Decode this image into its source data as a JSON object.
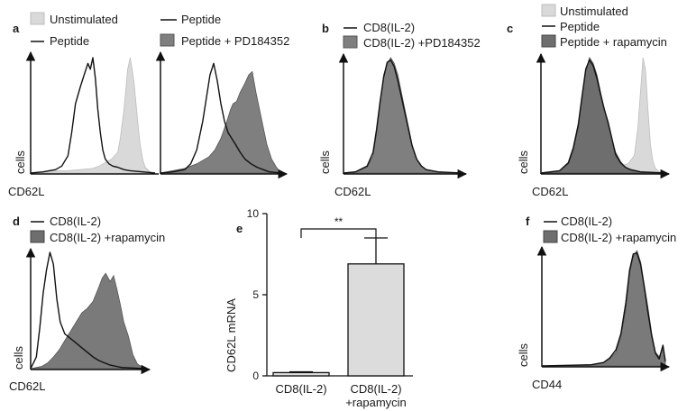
{
  "colors": {
    "unstimulated": "#d9d9d9",
    "peptide_line": "#111111",
    "pd184352": "#7f7f7f",
    "rapamycin": "#6e6e6e",
    "bar_fill": "#dcdcdc",
    "axis": "#111111"
  },
  "chart_data": [
    {
      "id": "a-left",
      "type": "area",
      "panel_label": "a",
      "xlabel": "CD62L",
      "ylabel": "cells",
      "xlim": [
        0,
        100
      ],
      "ylim": [
        0,
        1
      ],
      "legend": [
        {
          "name": "Unstimulated",
          "style": "fill",
          "color": "#d9d9d9"
        },
        {
          "name": "Peptide",
          "style": "line",
          "color": "#111111"
        }
      ],
      "series": [
        {
          "name": "Unstimulated",
          "style": "fill",
          "color": "#d9d9d9",
          "edge": "#bdbdbd",
          "opacity": 1,
          "x": [
            0,
            10,
            20,
            30,
            40,
            50,
            55,
            60,
            65,
            70,
            72,
            75,
            78,
            80,
            83,
            86,
            88,
            90,
            92,
            96,
            100
          ],
          "y": [
            0,
            0.01,
            0.02,
            0.02,
            0.03,
            0.04,
            0.06,
            0.09,
            0.12,
            0.18,
            0.3,
            0.55,
            0.9,
            1.0,
            0.8,
            0.45,
            0.25,
            0.12,
            0.05,
            0.01,
            0
          ]
        },
        {
          "name": "Peptide",
          "style": "line",
          "color": "#111111",
          "x": [
            0,
            10,
            20,
            25,
            30,
            33,
            36,
            40,
            43,
            46,
            48,
            50,
            52,
            54,
            56,
            58,
            60,
            63,
            66,
            70,
            75,
            80,
            90,
            100
          ],
          "y": [
            0,
            0.01,
            0.03,
            0.06,
            0.15,
            0.35,
            0.6,
            0.75,
            0.85,
            0.95,
            0.9,
            1.0,
            0.82,
            0.55,
            0.35,
            0.2,
            0.12,
            0.08,
            0.06,
            0.05,
            0.03,
            0.02,
            0.01,
            0
          ]
        }
      ]
    },
    {
      "id": "a-right",
      "type": "area",
      "panel_label": "",
      "xlabel": "",
      "ylabel": "",
      "xlim": [
        0,
        100
      ],
      "ylim": [
        0,
        1
      ],
      "legend": [
        {
          "name": "Peptide",
          "style": "line",
          "color": "#111111"
        },
        {
          "name": "Peptide + PD184352",
          "style": "fill",
          "color": "#7f7f7f"
        }
      ],
      "series": [
        {
          "name": "Peptide + PD184352",
          "style": "fill",
          "color": "#7f7f7f",
          "edge": "#555555",
          "opacity": 1,
          "x": [
            0,
            10,
            20,
            30,
            40,
            45,
            50,
            55,
            58,
            60,
            63,
            66,
            70,
            73,
            76,
            79,
            82,
            85,
            88,
            92,
            96,
            100
          ],
          "y": [
            0,
            0.02,
            0.04,
            0.08,
            0.14,
            0.2,
            0.3,
            0.45,
            0.55,
            0.6,
            0.62,
            0.7,
            0.78,
            0.85,
            0.88,
            0.7,
            0.55,
            0.4,
            0.25,
            0.12,
            0.05,
            0
          ]
        },
        {
          "name": "Peptide",
          "style": "line",
          "color": "#111111",
          "x": [
            0,
            10,
            20,
            25,
            30,
            35,
            38,
            41,
            44,
            47,
            50,
            53,
            56,
            59,
            62,
            66,
            70,
            75,
            80,
            85,
            90,
            100
          ],
          "y": [
            0,
            0.01,
            0.03,
            0.08,
            0.2,
            0.45,
            0.65,
            0.85,
            0.95,
            0.8,
            0.6,
            0.45,
            0.35,
            0.3,
            0.25,
            0.18,
            0.12,
            0.08,
            0.05,
            0.03,
            0.01,
            0
          ]
        }
      ]
    },
    {
      "id": "b",
      "type": "area",
      "panel_label": "b",
      "xlabel": "CD62L",
      "ylabel": "cells",
      "xlim": [
        0,
        100
      ],
      "ylim": [
        0,
        1
      ],
      "legend": [
        {
          "name": "CD8(IL-2)",
          "style": "line",
          "color": "#111111"
        },
        {
          "name": "CD8(IL-2) +PD184352",
          "style": "fill",
          "color": "#7f7f7f"
        }
      ],
      "series": [
        {
          "name": "CD8(IL-2) +PD184352",
          "style": "fill",
          "color": "#7f7f7f",
          "edge": "#555555",
          "opacity": 1,
          "x": [
            0,
            10,
            20,
            25,
            28,
            31,
            34,
            37,
            40,
            43,
            46,
            49,
            52,
            55,
            58,
            62,
            66,
            70,
            80,
            100
          ],
          "y": [
            0,
            0.01,
            0.05,
            0.15,
            0.35,
            0.6,
            0.85,
            0.95,
            1.0,
            0.95,
            0.85,
            0.7,
            0.55,
            0.4,
            0.25,
            0.12,
            0.06,
            0.03,
            0.01,
            0
          ]
        },
        {
          "name": "CD8(IL-2)",
          "style": "line",
          "color": "#111111",
          "x": [
            0,
            10,
            20,
            25,
            28,
            31,
            34,
            37,
            40,
            43,
            46,
            49,
            52,
            55,
            58,
            62,
            66,
            70,
            80,
            100
          ],
          "y": [
            0,
            0.01,
            0.06,
            0.18,
            0.38,
            0.62,
            0.83,
            0.96,
            0.98,
            0.92,
            0.8,
            0.66,
            0.52,
            0.38,
            0.24,
            0.12,
            0.06,
            0.03,
            0.01,
            0
          ]
        }
      ]
    },
    {
      "id": "c",
      "type": "area",
      "panel_label": "c",
      "xlabel": "CD62L",
      "ylabel": "cells",
      "xlim": [
        0,
        100
      ],
      "ylim": [
        0,
        1
      ],
      "legend": [
        {
          "name": "Unstimulated",
          "style": "fill",
          "color": "#d9d9d9"
        },
        {
          "name": "Peptide",
          "style": "line",
          "color": "#111111"
        },
        {
          "name": "Peptide + rapamycin",
          "style": "fill",
          "color": "#6e6e6e"
        }
      ],
      "series": [
        {
          "name": "Unstimulated",
          "style": "fill",
          "color": "#d9d9d9",
          "edge": "#bdbdbd",
          "opacity": 1,
          "x": [
            0,
            30,
            50,
            60,
            70,
            75,
            78,
            80,
            82,
            84,
            86,
            88,
            90,
            92,
            95,
            100
          ],
          "y": [
            0,
            0.02,
            0.03,
            0.05,
            0.08,
            0.15,
            0.4,
            0.7,
            1.0,
            0.9,
            0.55,
            0.25,
            0.1,
            0.04,
            0.01,
            0
          ]
        },
        {
          "name": "Peptide + rapamycin",
          "style": "fill",
          "color": "#6e6e6e",
          "edge": "#444444",
          "opacity": 1,
          "x": [
            0,
            15,
            22,
            26,
            30,
            33,
            36,
            39,
            42,
            45,
            48,
            51,
            54,
            57,
            60,
            64,
            68,
            72,
            80,
            100
          ],
          "y": [
            0,
            0.02,
            0.08,
            0.2,
            0.4,
            0.65,
            0.88,
            1.0,
            0.95,
            0.85,
            0.7,
            0.55,
            0.42,
            0.3,
            0.18,
            0.1,
            0.05,
            0.03,
            0.01,
            0
          ]
        },
        {
          "name": "Peptide",
          "style": "line",
          "color": "#111111",
          "x": [
            0,
            15,
            22,
            26,
            30,
            33,
            36,
            39,
            42,
            45,
            48,
            51,
            54,
            57,
            60,
            64,
            68,
            72,
            80,
            100
          ],
          "y": [
            0,
            0.02,
            0.09,
            0.22,
            0.42,
            0.66,
            0.9,
            0.98,
            0.93,
            0.82,
            0.68,
            0.55,
            0.44,
            0.3,
            0.16,
            0.09,
            0.05,
            0.03,
            0.01,
            0
          ]
        }
      ]
    },
    {
      "id": "d",
      "type": "area",
      "panel_label": "d",
      "xlabel": "CD62L",
      "ylabel": "cells",
      "xlim": [
        0,
        100
      ],
      "ylim": [
        0,
        1
      ],
      "legend": [
        {
          "name": "CD8(IL-2)",
          "style": "line",
          "color": "#111111"
        },
        {
          "name": "CD8(IL-2) +rapamycin",
          "style": "fill",
          "color": "#6e6e6e"
        }
      ],
      "series": [
        {
          "name": "CD8(IL-2) +rapamycin",
          "style": "fill",
          "color": "#7a7a7a",
          "edge": "#555555",
          "opacity": 1,
          "x": [
            0,
            10,
            15,
            20,
            25,
            30,
            35,
            40,
            45,
            50,
            55,
            60,
            63,
            66,
            70,
            73,
            76,
            79,
            82,
            86,
            90,
            94,
            100
          ],
          "y": [
            0,
            0.02,
            0.05,
            0.1,
            0.16,
            0.24,
            0.32,
            0.4,
            0.48,
            0.52,
            0.58,
            0.7,
            0.78,
            0.82,
            0.75,
            0.8,
            0.68,
            0.55,
            0.4,
            0.28,
            0.12,
            0.04,
            0
          ]
        },
        {
          "name": "CD8(IL-2)",
          "style": "line",
          "color": "#111111",
          "x": [
            0,
            5,
            8,
            11,
            14,
            17,
            20,
            23,
            26,
            30,
            35,
            40,
            45,
            50,
            55,
            60,
            65,
            70,
            80,
            100
          ],
          "y": [
            0,
            0.1,
            0.35,
            0.65,
            0.85,
            1.0,
            0.9,
            0.6,
            0.4,
            0.3,
            0.26,
            0.22,
            0.18,
            0.14,
            0.1,
            0.07,
            0.05,
            0.03,
            0.01,
            0
          ]
        }
      ]
    },
    {
      "id": "e",
      "type": "bar",
      "panel_label": "e",
      "title": "",
      "xlabel": "",
      "ylabel": "CD62L mRNA",
      "ylim": [
        0,
        10
      ],
      "yticks": [
        0,
        5,
        10
      ],
      "categories": [
        "CD8(IL-2)",
        "CD8(IL-2)\n+rapamycin"
      ],
      "category_lines": [
        [
          "CD8(IL-2)"
        ],
        [
          "CD8(IL-2)",
          "+rapamycin"
        ]
      ],
      "values": [
        0.2,
        6.9
      ],
      "errors": [
        0.05,
        1.6
      ],
      "significance": {
        "between": [
          0,
          1
        ],
        "label": "**"
      }
    },
    {
      "id": "f",
      "type": "area",
      "panel_label": "f",
      "xlabel": "CD44",
      "ylabel": "cells",
      "xlim": [
        0,
        100
      ],
      "ylim": [
        0,
        1
      ],
      "legend": [
        {
          "name": "CD8(IL-2)",
          "style": "line",
          "color": "#111111"
        },
        {
          "name": "CD8(IL-2) +rapamycin",
          "style": "fill",
          "color": "#6e6e6e"
        }
      ],
      "series": [
        {
          "name": "CD8(IL-2) +rapamycin",
          "style": "fill",
          "color": "#7a7a7a",
          "edge": "#555555",
          "opacity": 1,
          "x": [
            0,
            40,
            50,
            55,
            60,
            64,
            68,
            71,
            74,
            77,
            80,
            83,
            86,
            89,
            92,
            95,
            98,
            100
          ],
          "y": [
            0,
            0.01,
            0.03,
            0.06,
            0.12,
            0.25,
            0.5,
            0.8,
            0.95,
            1.0,
            0.9,
            0.7,
            0.5,
            0.28,
            0.12,
            0.08,
            0.15,
            0.05
          ]
        },
        {
          "name": "CD8(IL-2)",
          "style": "line",
          "color": "#111111",
          "x": [
            0,
            40,
            50,
            55,
            60,
            64,
            68,
            71,
            74,
            77,
            80,
            83,
            86,
            89,
            92,
            95,
            98,
            100
          ],
          "y": [
            0,
            0.01,
            0.03,
            0.07,
            0.14,
            0.28,
            0.55,
            0.83,
            0.97,
            0.98,
            0.88,
            0.68,
            0.46,
            0.26,
            0.11,
            0.06,
            0.18,
            0.04
          ]
        }
      ]
    }
  ]
}
